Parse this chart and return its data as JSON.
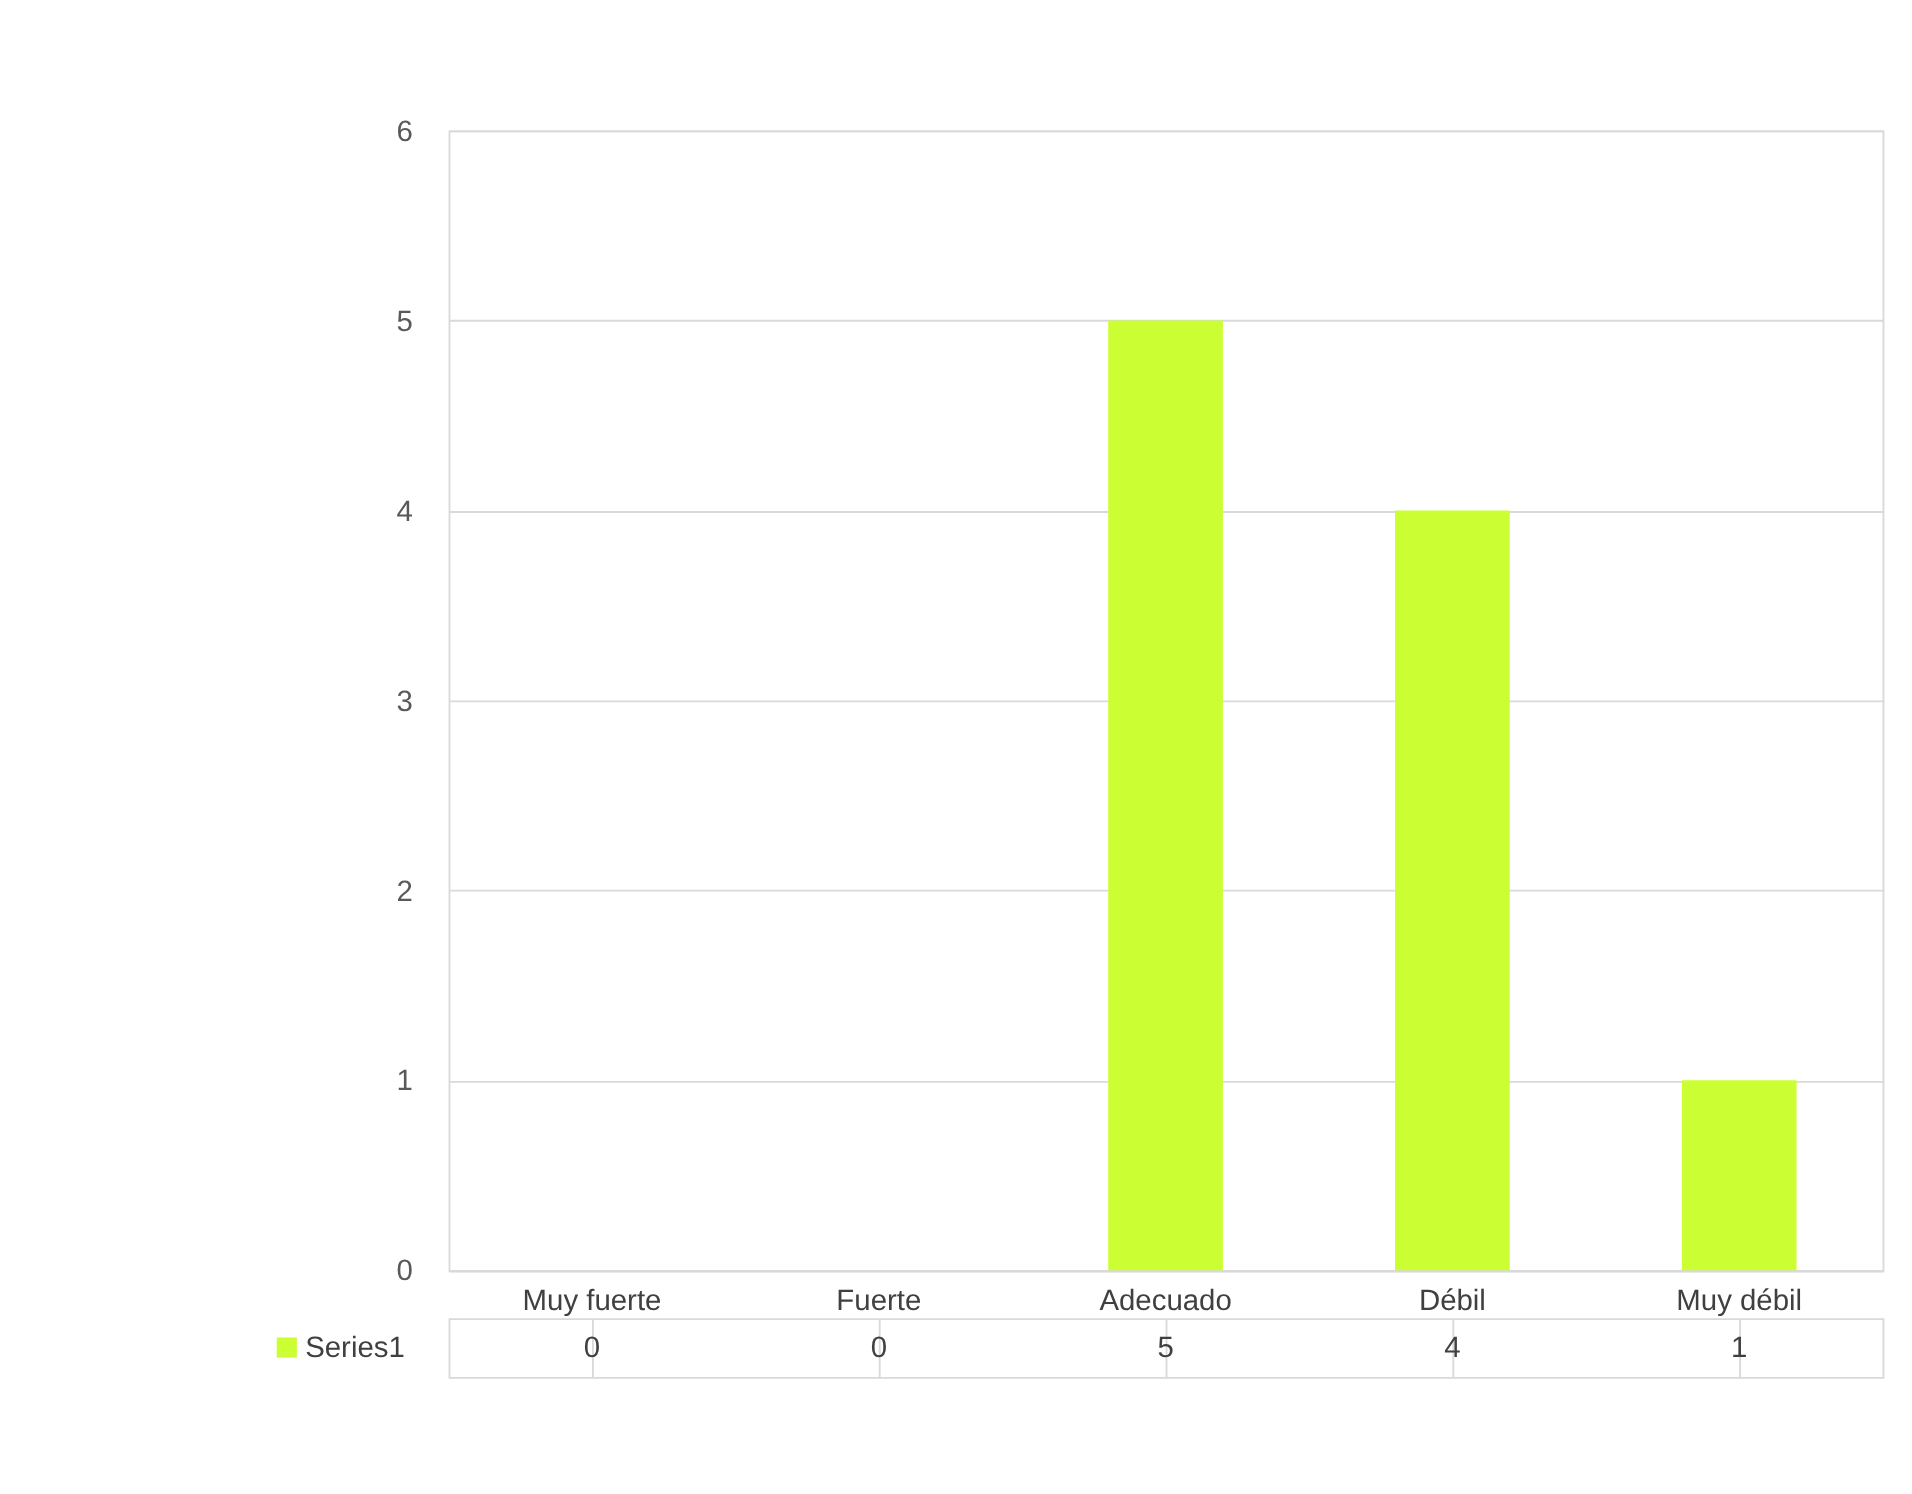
{
  "chart_data": {
    "type": "bar",
    "categories": [
      "Muy fuerte",
      "Fuerte",
      "Adecuado",
      "Débil",
      "Muy débil"
    ],
    "series": [
      {
        "name": "Series1",
        "color": "#ccff33",
        "values": [
          0,
          0,
          5,
          4,
          1
        ]
      }
    ],
    "ylim": [
      0,
      6
    ],
    "yticks": [
      0,
      1,
      2,
      3,
      4,
      5,
      6
    ],
    "grid": "y",
    "legend": "bottom",
    "data_labels": true
  }
}
